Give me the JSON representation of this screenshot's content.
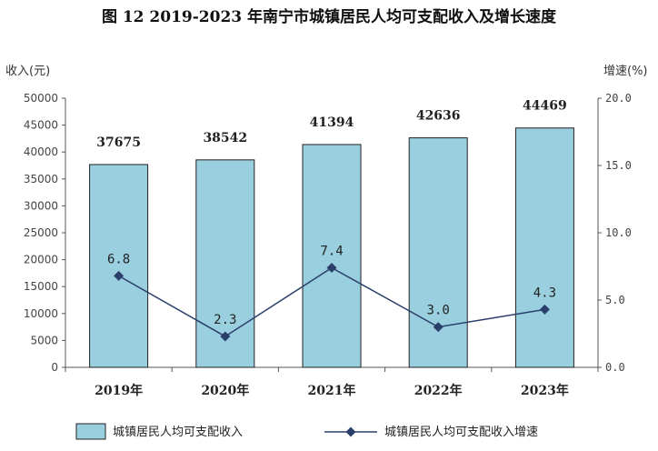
{
  "chart_data": {
    "type": "bar",
    "title": "图 12    2019-2023 年南宁市城镇居民人均可支配收入及增长速度",
    "ylabel_left": "收入(元)",
    "ylabel_right": "增速(%)",
    "categories": [
      "2019年",
      "2020年",
      "2021年",
      "2022年",
      "2023年"
    ],
    "ylim_left": [
      0,
      50000
    ],
    "yticks_left": [
      "0",
      "5000",
      "10000",
      "15000",
      "20000",
      "25000",
      "30000",
      "35000",
      "40000",
      "45000",
      "50000"
    ],
    "ylim_right": [
      0,
      20
    ],
    "yticks_right": [
      "0.0",
      "5.0",
      "10.0",
      "15.0",
      "20.0"
    ],
    "series": [
      {
        "name": "城镇居民人均可支配收入",
        "type": "bar",
        "axis": "left",
        "values": [
          37675,
          38542,
          41394,
          42636,
          44469
        ],
        "labels": [
          "37675",
          "38542",
          "41394",
          "42636",
          "44469"
        ],
        "color": "#99CFDE"
      },
      {
        "name": "城镇居民人均可支配收入增速",
        "type": "line",
        "axis": "right",
        "values": [
          6.8,
          2.3,
          7.4,
          3.0,
          4.3
        ],
        "labels": [
          "6.8",
          "2.3",
          "7.4",
          "3.0",
          "4.3"
        ],
        "color": "#2B3F6B"
      }
    ],
    "grid": false,
    "legend": "bottom"
  }
}
